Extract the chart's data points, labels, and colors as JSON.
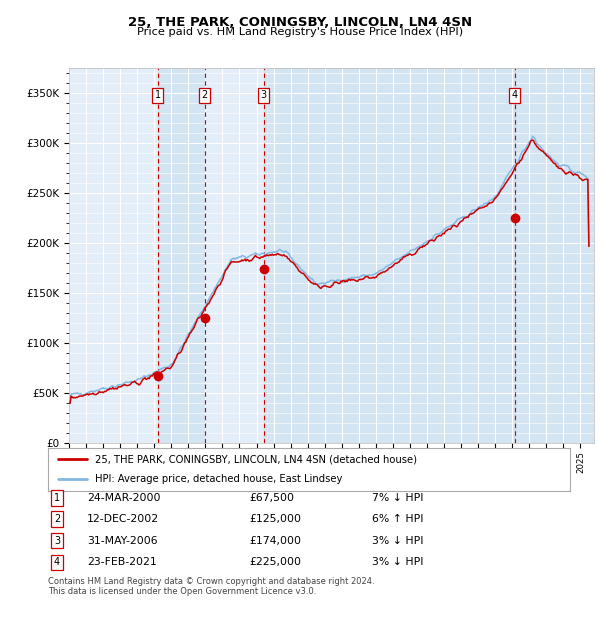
{
  "title": "25, THE PARK, CONINGSBY, LINCOLN, LN4 4SN",
  "subtitle": "Price paid vs. HM Land Registry's House Price Index (HPI)",
  "legend_line1": "25, THE PARK, CONINGSBY, LINCOLN, LN4 4SN (detached house)",
  "legend_line2": "HPI: Average price, detached house, East Lindsey",
  "footer1": "Contains HM Land Registry data © Crown copyright and database right 2024.",
  "footer2": "This data is licensed under the Open Government Licence v3.0.",
  "transactions": [
    {
      "num": 1,
      "date": "24-MAR-2000",
      "price": 67500,
      "pct": "7%",
      "dir": "↓",
      "year_x": 2000.22
    },
    {
      "num": 2,
      "date": "12-DEC-2002",
      "price": 125000,
      "pct": "6%",
      "dir": "↑",
      "year_x": 2002.95
    },
    {
      "num": 3,
      "date": "31-MAY-2006",
      "price": 174000,
      "pct": "3%",
      "dir": "↓",
      "year_x": 2006.42
    },
    {
      "num": 4,
      "date": "23-FEB-2021",
      "price": 225000,
      "pct": "3%",
      "dir": "↓",
      "year_x": 2021.14
    }
  ],
  "hpi_color": "#85b8e0",
  "price_color": "#cc0000",
  "plot_bg": "#e4eef8",
  "grid_color": "#ffffff",
  "dashed_color": "#cc0000",
  "shade_color": "#c0d8ee",
  "shade_alpha": 0.45,
  "ylim": [
    0,
    375000
  ],
  "xlim_start": 1995.0,
  "xlim_end": 2025.8,
  "seed": 42
}
